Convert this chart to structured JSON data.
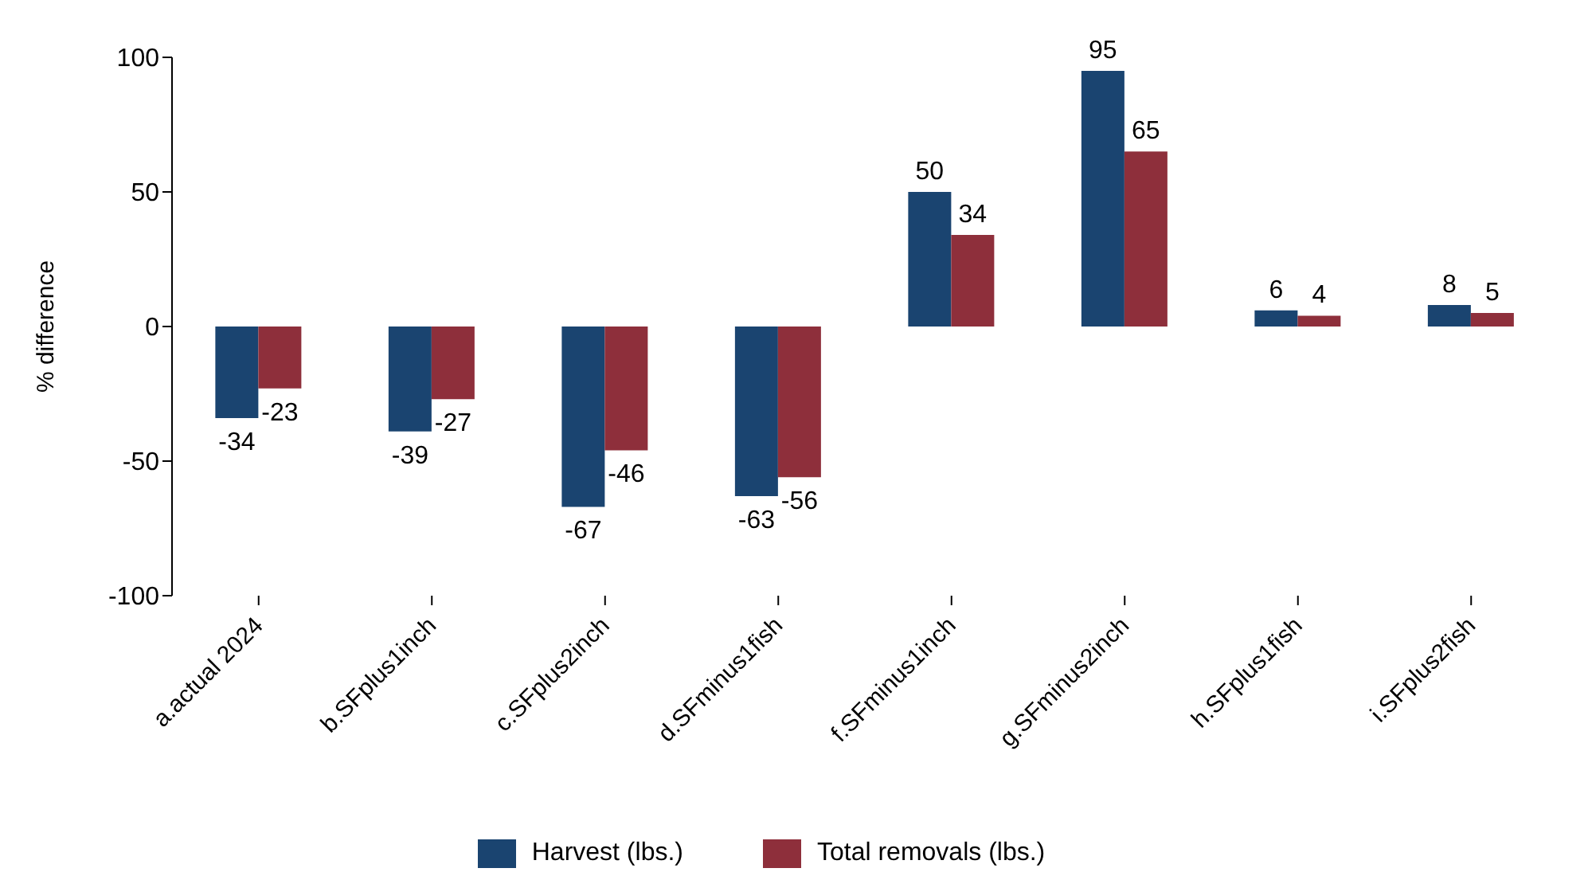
{
  "chart_data": {
    "type": "bar",
    "ylabel": "% difference",
    "categories": [
      "a.actual 2024",
      "b.SFplus1inch",
      "c.SFplus2inch",
      "d.SFminus1fish",
      "f.SFminus1inch",
      "g.SFminus2inch",
      "h.SFplus1fish",
      "i.SFplus2fish"
    ],
    "series": [
      {
        "name": "Harvest (lbs.)",
        "color": "#1a4470",
        "values": [
          -34,
          -39,
          -67,
          -63,
          50,
          95,
          6,
          8
        ]
      },
      {
        "name": "Total removals (lbs.)",
        "color": "#8e2f3b",
        "values": [
          -23,
          -27,
          -46,
          -56,
          34,
          65,
          4,
          5
        ]
      }
    ],
    "ylim": [
      -100,
      100
    ],
    "yticks": [
      -100,
      -50,
      0,
      50,
      100
    ],
    "grid": false,
    "legend": "bottom",
    "data_labels": true
  }
}
